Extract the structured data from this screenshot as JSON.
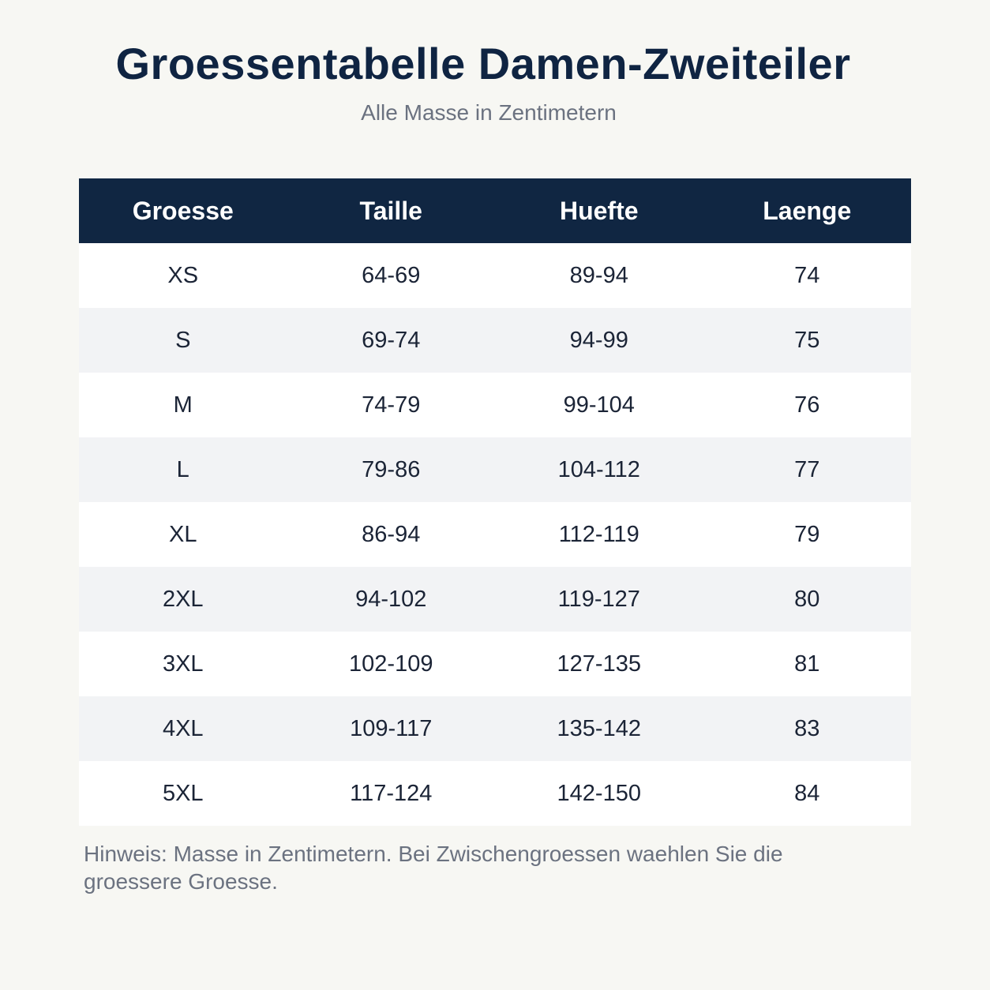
{
  "title": "Groessentabelle Damen-Zweiteiler",
  "subtitle": "Alle Masse in Zentimetern",
  "chart_data": {
    "type": "table",
    "columns": [
      "Groesse",
      "Taille",
      "Huefte",
      "Laenge"
    ],
    "rows": [
      [
        "XS",
        "64-69",
        "89-94",
        "74"
      ],
      [
        "S",
        "69-74",
        "94-99",
        "75"
      ],
      [
        "M",
        "74-79",
        "99-104",
        "76"
      ],
      [
        "L",
        "79-86",
        "104-112",
        "77"
      ],
      [
        "XL",
        "86-94",
        "112-119",
        "79"
      ],
      [
        "2XL",
        "94-102",
        "119-127",
        "80"
      ],
      [
        "3XL",
        "102-109",
        "127-135",
        "81"
      ],
      [
        "4XL",
        "109-117",
        "135-142",
        "83"
      ],
      [
        "5XL",
        "117-124",
        "142-150",
        "84"
      ]
    ]
  },
  "note": "Hinweis: Masse in Zentimetern. Bei Zwischengroessen waehlen Sie die groessere Groesse.",
  "colors": {
    "header_bg": "#102642",
    "title": "#0f2442",
    "row_alt": "#f2f3f5",
    "page_bg": "#f7f7f3"
  }
}
